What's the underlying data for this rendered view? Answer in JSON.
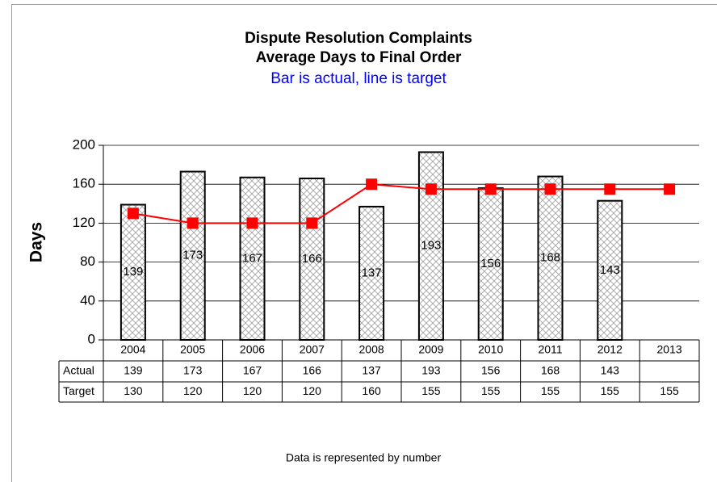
{
  "chart_data": {
    "type": "bar",
    "title": [
      "Dispute Resolution Complaints",
      "Average Days to Final Order"
    ],
    "subtitle": "Bar is actual, line is target",
    "y_label": "Days",
    "caption": "Data is represented by number",
    "categories": [
      "2004",
      "2005",
      "2006",
      "2007",
      "2008",
      "2009",
      "2010",
      "2011",
      "2012",
      "2013"
    ],
    "series": [
      {
        "name": "Actual",
        "type": "bar",
        "color": "#a0a0a0",
        "values": [
          139,
          173,
          167,
          166,
          137,
          193,
          156,
          168,
          143,
          null
        ]
      },
      {
        "name": "Target",
        "type": "line",
        "color": "#ff0000",
        "values": [
          130,
          120,
          120,
          120,
          160,
          155,
          155,
          155,
          155,
          155
        ]
      }
    ],
    "ylim": [
      0,
      200
    ],
    "yticks": [
      0,
      40,
      80,
      120,
      160,
      200
    ],
    "grid": true,
    "data_table": true
  }
}
